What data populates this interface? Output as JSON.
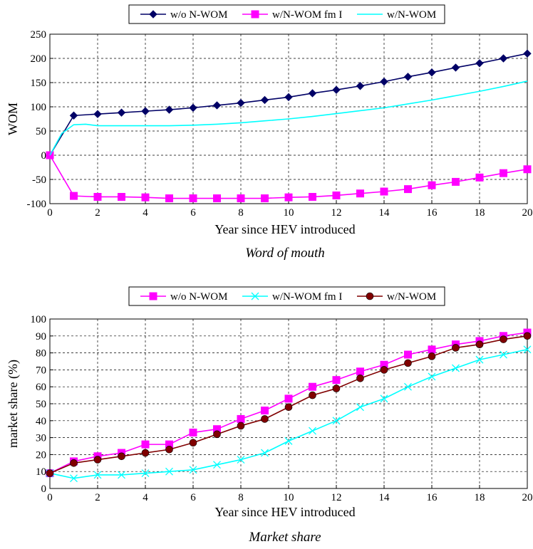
{
  "chart_data": [
    {
      "type": "line",
      "caption": "Word of mouth",
      "xlabel": "Year since HEV introduced",
      "ylabel": "WOM",
      "xlim": [
        0,
        20
      ],
      "ylim": [
        -100,
        250
      ],
      "xticks": [
        "0",
        "2",
        "4",
        "6",
        "8",
        "10",
        "12",
        "14",
        "16",
        "18",
        "20"
      ],
      "yticks": [
        "-100",
        "-50",
        "0",
        "50",
        "100",
        "150",
        "200",
        "250"
      ],
      "grid": true,
      "legend_position": "top",
      "series": [
        {
          "name": "w/o N-WOM",
          "color": "#000066",
          "marker": "diamond",
          "x": [
            0,
            1,
            2,
            3,
            4,
            5,
            6,
            7,
            8,
            9,
            10,
            11,
            12,
            13,
            14,
            15,
            16,
            17,
            18,
            19,
            20
          ],
          "values": [
            0,
            82,
            85,
            88,
            91,
            94,
            98,
            103,
            108,
            114,
            120,
            128,
            135,
            143,
            152,
            162,
            171,
            181,
            190,
            200,
            210
          ]
        },
        {
          "name": "w/N-WOM fm I",
          "color": "#ff00ff",
          "marker": "square",
          "x": [
            0,
            1,
            2,
            3,
            4,
            5,
            6,
            7,
            8,
            9,
            10,
            11,
            12,
            13,
            14,
            15,
            16,
            17,
            18,
            19,
            20
          ],
          "values": [
            0,
            -84,
            -86,
            -86,
            -87,
            -89,
            -89,
            -89,
            -89,
            -89,
            -87,
            -86,
            -83,
            -79,
            -75,
            -70,
            -62,
            -55,
            -46,
            -37,
            -29
          ]
        },
        {
          "name": "w/N-WOM",
          "color": "#00ffff",
          "marker": "none",
          "x": [
            0,
            0.5,
            1,
            1.5,
            2,
            3,
            4,
            5,
            6,
            7,
            8,
            9,
            10,
            11,
            12,
            13,
            14,
            15,
            16,
            17,
            18,
            19,
            20
          ],
          "values": [
            0,
            45,
            63,
            64,
            61,
            61,
            61,
            61,
            62,
            64,
            67,
            71,
            75,
            80,
            86,
            92,
            98,
            106,
            114,
            123,
            132,
            142,
            153
          ]
        }
      ]
    },
    {
      "type": "line",
      "caption": "Market share",
      "xlabel": "Year since HEV introduced",
      "ylabel": "market share (%)",
      "xlim": [
        0,
        20
      ],
      "ylim": [
        0,
        100
      ],
      "xticks": [
        "0",
        "2",
        "4",
        "6",
        "8",
        "10",
        "12",
        "14",
        "16",
        "18",
        "20"
      ],
      "yticks": [
        "0",
        "10",
        "20",
        "30",
        "40",
        "50",
        "60",
        "70",
        "80",
        "90",
        "100"
      ],
      "grid": true,
      "legend_position": "top",
      "series": [
        {
          "name": "w/o N-WOM",
          "color": "#ff00ff",
          "marker": "square",
          "x": [
            0,
            1,
            2,
            3,
            4,
            5,
            6,
            7,
            8,
            9,
            10,
            11,
            12,
            13,
            14,
            15,
            16,
            17,
            18,
            19,
            20
          ],
          "values": [
            9,
            16,
            19,
            21,
            26,
            26,
            33,
            35,
            41,
            46,
            53,
            60,
            64,
            69,
            73,
            79,
            82,
            85,
            87,
            90,
            92
          ]
        },
        {
          "name": "w/N-WOM fm I",
          "color": "#00ffff",
          "marker": "x",
          "x": [
            0,
            1,
            2,
            3,
            4,
            5,
            6,
            7,
            8,
            9,
            10,
            11,
            12,
            13,
            14,
            15,
            16,
            17,
            18,
            19,
            20
          ],
          "values": [
            9,
            6,
            8,
            8,
            9,
            10,
            11,
            14,
            17,
            21,
            28,
            34,
            40,
            48,
            53,
            60,
            66,
            71,
            76,
            79,
            82
          ]
        },
        {
          "name": "w/N-WOM",
          "color": "#800000",
          "marker": "circle",
          "x": [
            0,
            1,
            2,
            3,
            4,
            5,
            6,
            7,
            8,
            9,
            10,
            11,
            12,
            13,
            14,
            15,
            16,
            17,
            18,
            19,
            20
          ],
          "values": [
            9,
            15,
            17,
            19,
            21,
            23,
            27,
            32,
            37,
            41,
            48,
            55,
            59,
            65,
            70,
            74,
            78,
            83,
            85,
            88,
            90
          ]
        }
      ]
    }
  ]
}
